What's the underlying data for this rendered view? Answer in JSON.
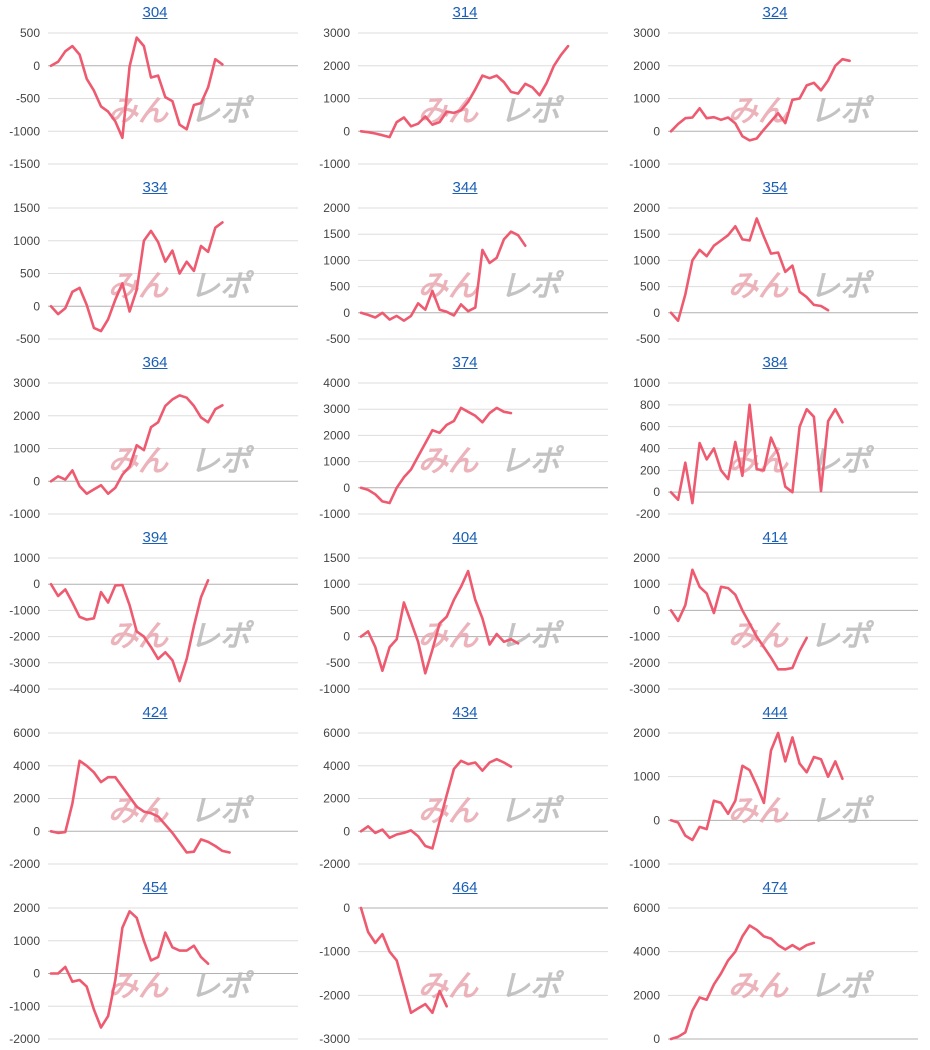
{
  "line_color": "#ee5a70",
  "grid_color": "#dddddd",
  "zero_line_color": "#b0b0b0",
  "link_color": "#1a5fb4",
  "watermark": {
    "text": "みんレポ",
    "colors": [
      "#e9a6b0",
      "#b9b9b9"
    ]
  },
  "chart_data": [
    {
      "type": "line",
      "title": "304",
      "yticks": [
        500,
        0,
        -500,
        -1000,
        -1500
      ],
      "ylim": [
        -1500,
        500
      ],
      "values": [
        0,
        60,
        220,
        300,
        170,
        -200,
        -380,
        -620,
        -700,
        -850,
        -1100,
        -10,
        430,
        300,
        -180,
        -150,
        -480,
        -540,
        -900,
        -970,
        -600,
        -570,
        -330,
        100,
        20
      ]
    },
    {
      "type": "line",
      "title": "314",
      "yticks": [
        3000,
        2000,
        1000,
        0,
        -1000
      ],
      "ylim": [
        -1000,
        3000
      ],
      "values": [
        0,
        -30,
        -70,
        -120,
        -180,
        280,
        420,
        150,
        230,
        450,
        200,
        280,
        600,
        560,
        640,
        900,
        1280,
        1700,
        1620,
        1700,
        1500,
        1200,
        1150,
        1450,
        1340,
        1100,
        1480,
        2000,
        2330,
        2600
      ]
    },
    {
      "type": "line",
      "title": "324",
      "yticks": [
        3000,
        2000,
        1000,
        0,
        -1000
      ],
      "ylim": [
        -1000,
        3000
      ],
      "values": [
        0,
        220,
        400,
        420,
        700,
        400,
        430,
        350,
        420,
        240,
        -150,
        -280,
        -220,
        50,
        300,
        550,
        250,
        960,
        1000,
        1400,
        1480,
        1250,
        1550,
        2000,
        2200,
        2150
      ]
    },
    {
      "type": "line",
      "title": "334",
      "yticks": [
        1500,
        1000,
        500,
        0,
        -500
      ],
      "ylim": [
        -500,
        1500
      ],
      "values": [
        0,
        -120,
        -30,
        220,
        280,
        20,
        -330,
        -380,
        -200,
        100,
        350,
        -80,
        250,
        1000,
        1150,
        980,
        680,
        850,
        500,
        680,
        540,
        920,
        830,
        1200,
        1280
      ]
    },
    {
      "type": "line",
      "title": "344",
      "yticks": [
        2000,
        1500,
        1000,
        500,
        0,
        -500
      ],
      "ylim": [
        -500,
        2000
      ],
      "values": [
        0,
        -40,
        -90,
        0,
        -130,
        -60,
        -150,
        -60,
        180,
        60,
        420,
        60,
        20,
        -50,
        160,
        30,
        100,
        1200,
        950,
        1050,
        1400,
        1550,
        1480,
        1280
      ]
    },
    {
      "type": "line",
      "title": "354",
      "yticks": [
        2000,
        1500,
        1000,
        500,
        0,
        -500
      ],
      "ylim": [
        -500,
        2000
      ],
      "values": [
        0,
        -150,
        350,
        1000,
        1200,
        1080,
        1280,
        1380,
        1480,
        1650,
        1400,
        1380,
        1800,
        1450,
        1130,
        1150,
        780,
        900,
        400,
        300,
        150,
        130,
        50
      ]
    },
    {
      "type": "line",
      "title": "364",
      "yticks": [
        3000,
        2000,
        1000,
        0,
        -1000
      ],
      "ylim": [
        -1000,
        3000
      ],
      "values": [
        0,
        150,
        50,
        330,
        -150,
        -380,
        -250,
        -120,
        -380,
        -200,
        200,
        450,
        1100,
        950,
        1650,
        1800,
        2300,
        2500,
        2620,
        2550,
        2300,
        1950,
        1800,
        2200,
        2320
      ]
    },
    {
      "type": "line",
      "title": "374",
      "yticks": [
        4000,
        3000,
        2000,
        1000,
        0,
        -1000
      ],
      "ylim": [
        -1000,
        4000
      ],
      "values": [
        0,
        -80,
        -250,
        -520,
        -580,
        0,
        400,
        700,
        1200,
        1700,
        2200,
        2100,
        2400,
        2550,
        3050,
        2900,
        2750,
        2500,
        2850,
        3050,
        2900,
        2850
      ]
    },
    {
      "type": "line",
      "title": "384",
      "yticks": [
        1000,
        800,
        600,
        400,
        200,
        0,
        -200
      ],
      "ylim": [
        -200,
        1000
      ],
      "values": [
        0,
        -70,
        270,
        -100,
        450,
        300,
        400,
        200,
        120,
        460,
        150,
        800,
        210,
        200,
        500,
        350,
        50,
        0,
        600,
        760,
        690,
        10,
        650,
        760,
        640
      ]
    },
    {
      "type": "line",
      "title": "394",
      "yticks": [
        1000,
        0,
        -1000,
        -2000,
        -3000,
        -4000
      ],
      "ylim": [
        -4000,
        1000
      ],
      "values": [
        0,
        -450,
        -200,
        -700,
        -1250,
        -1350,
        -1300,
        -300,
        -700,
        -50,
        -30,
        -800,
        -1800,
        -2000,
        -2400,
        -2850,
        -2600,
        -2900,
        -3700,
        -2850,
        -1600,
        -500,
        150
      ]
    },
    {
      "type": "line",
      "title": "404",
      "yticks": [
        1500,
        1000,
        500,
        0,
        -500,
        -1000
      ],
      "ylim": [
        -1000,
        1500
      ],
      "values": [
        0,
        100,
        -200,
        -650,
        -200,
        -50,
        650,
        280,
        -100,
        -700,
        -250,
        250,
        380,
        700,
        950,
        1250,
        700,
        350,
        -150,
        50,
        -100,
        -50,
        -130
      ]
    },
    {
      "type": "line",
      "title": "414",
      "yticks": [
        2000,
        1000,
        0,
        -1000,
        -2000,
        -3000
      ],
      "ylim": [
        -3000,
        2000
      ],
      "values": [
        0,
        -400,
        200,
        1550,
        900,
        650,
        -100,
        900,
        850,
        600,
        0,
        -500,
        -1000,
        -1400,
        -1800,
        -2250,
        -2250,
        -2200,
        -1550,
        -1050
      ]
    },
    {
      "type": "line",
      "title": "424",
      "yticks": [
        6000,
        4000,
        2000,
        0,
        -2000
      ],
      "ylim": [
        -2000,
        6000
      ],
      "values": [
        0,
        -100,
        -50,
        1700,
        4300,
        4000,
        3600,
        3000,
        3300,
        3300,
        2700,
        2100,
        1500,
        1200,
        1100,
        900,
        400,
        -100,
        -700,
        -1300,
        -1250,
        -500,
        -650,
        -900,
        -1200,
        -1300
      ]
    },
    {
      "type": "line",
      "title": "434",
      "yticks": [
        6000,
        4000,
        2000,
        0,
        -2000
      ],
      "ylim": [
        -2000,
        6000
      ],
      "values": [
        0,
        300,
        -100,
        100,
        -400,
        -200,
        -100,
        50,
        -300,
        -900,
        -1050,
        600,
        2200,
        3800,
        4300,
        4100,
        4200,
        3700,
        4200,
        4400,
        4200,
        3950
      ]
    },
    {
      "type": "line",
      "title": "444",
      "yticks": [
        2000,
        1000,
        0,
        -1000
      ],
      "ylim": [
        -1000,
        2000
      ],
      "values": [
        0,
        -50,
        -350,
        -450,
        -150,
        -200,
        450,
        400,
        150,
        450,
        1250,
        1150,
        800,
        400,
        1600,
        2000,
        1350,
        1900,
        1300,
        1100,
        1450,
        1400,
        1000,
        1350,
        950
      ]
    },
    {
      "type": "line",
      "title": "454",
      "yticks": [
        2000,
        1000,
        0,
        -1000,
        -2000
      ],
      "ylim": [
        -2000,
        2000
      ],
      "values": [
        0,
        0,
        200,
        -250,
        -200,
        -400,
        -1100,
        -1650,
        -1300,
        -200,
        1400,
        1900,
        1700,
        1000,
        400,
        500,
        1250,
        800,
        700,
        700,
        850,
        500,
        300
      ]
    },
    {
      "type": "line",
      "title": "464",
      "yticks": [
        0,
        -1000,
        -2000,
        -3000
      ],
      "ylim": [
        -3000,
        0
      ],
      "values": [
        0,
        -550,
        -800,
        -600,
        -1000,
        -1200,
        -1800,
        -2400,
        -2300,
        -2200,
        -2400,
        -1900,
        -2250
      ]
    },
    {
      "type": "line",
      "title": "474",
      "yticks": [
        6000,
        4000,
        2000,
        0
      ],
      "ylim": [
        0,
        6000
      ],
      "values": [
        0,
        100,
        300,
        1300,
        1900,
        1800,
        2500,
        3000,
        3600,
        4000,
        4700,
        5200,
        5000,
        4700,
        4600,
        4300,
        4100,
        4300,
        4100,
        4300,
        4400
      ]
    }
  ]
}
